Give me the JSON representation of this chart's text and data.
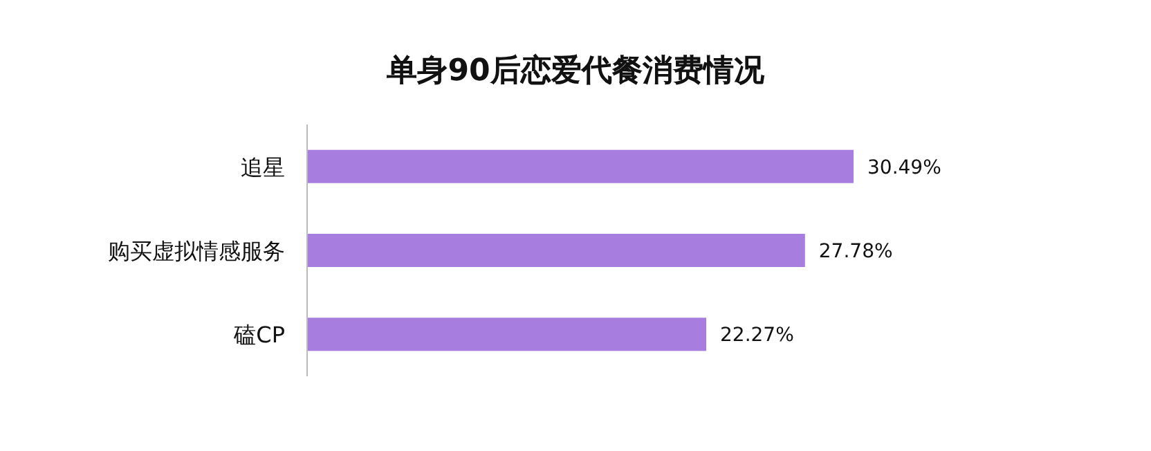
{
  "chart_data": {
    "type": "bar",
    "orientation": "horizontal",
    "title": "单身90后恋爱代餐消费情况",
    "categories": [
      "追星",
      "购买虚拟情感服务",
      "磕CP"
    ],
    "values": [
      30.49,
      27.78,
      22.27
    ],
    "value_labels": [
      "30.49%",
      "27.78%",
      "22.27%"
    ],
    "color": "#a77de0"
  }
}
